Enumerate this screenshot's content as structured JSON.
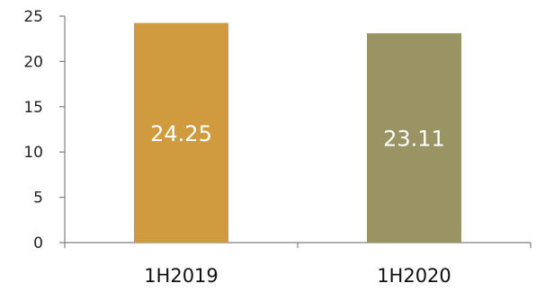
{
  "chart_data": {
    "type": "bar",
    "categories": [
      "1H2019",
      "1H2020"
    ],
    "values": [
      24.25,
      23.11
    ],
    "data_labels": [
      "24.25",
      "23.11"
    ],
    "colors": [
      "#d09a3e",
      "#9a9464"
    ],
    "ylim": [
      0,
      25
    ],
    "yticks": [
      0,
      5,
      10,
      15,
      20,
      25
    ],
    "ytick_labels": [
      "0",
      "5",
      "10",
      "15",
      "20",
      "25"
    ],
    "title": "",
    "xlabel": "",
    "ylabel": "",
    "grid": false,
    "legend": "none"
  }
}
